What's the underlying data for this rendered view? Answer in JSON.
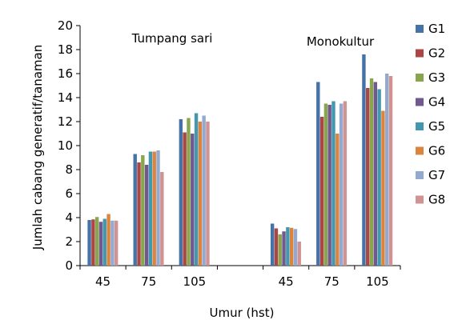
{
  "chart_data": {
    "type": "bar",
    "ylabel": "Jumlah cabang generatif/tanaman",
    "xlabel": "Umur (hst)",
    "ylim": [
      0,
      20
    ],
    "yticks": [
      0,
      2,
      4,
      6,
      8,
      10,
      12,
      14,
      16,
      18,
      20
    ],
    "grid": false,
    "legend_position": "right",
    "groups": [
      {
        "label": "Tumpang sari",
        "categories": [
          "45",
          "75",
          "105"
        ]
      },
      {
        "label": "Monokultur",
        "categories": [
          "45",
          "75",
          "105"
        ]
      }
    ],
    "categories": [
      "45",
      "75",
      "105",
      "45",
      "75",
      "105"
    ],
    "series": [
      {
        "name": "G1",
        "color": "#4572A7",
        "values": [
          3.8,
          9.3,
          12.2,
          3.5,
          15.3,
          17.6
        ]
      },
      {
        "name": "G2",
        "color": "#AA4643",
        "values": [
          3.85,
          8.6,
          11.1,
          3.1,
          12.4,
          14.8
        ]
      },
      {
        "name": "G3",
        "color": "#89A54E",
        "values": [
          4.05,
          9.2,
          12.3,
          2.6,
          13.5,
          15.6
        ]
      },
      {
        "name": "G4",
        "color": "#71588F",
        "values": [
          3.65,
          8.4,
          11.0,
          2.85,
          13.4,
          15.3
        ]
      },
      {
        "name": "G5",
        "color": "#4198AF",
        "values": [
          3.9,
          9.5,
          12.7,
          3.2,
          13.7,
          14.7
        ]
      },
      {
        "name": "G6",
        "color": "#DB843D",
        "values": [
          4.3,
          9.5,
          12.0,
          3.15,
          11.0,
          12.9
        ]
      },
      {
        "name": "G7",
        "color": "#93A9CF",
        "values": [
          3.75,
          9.6,
          12.5,
          3.05,
          13.5,
          16.0
        ]
      },
      {
        "name": "G8",
        "color": "#D19392",
        "values": [
          3.75,
          7.8,
          12.0,
          2.0,
          13.7,
          15.8
        ]
      }
    ]
  }
}
